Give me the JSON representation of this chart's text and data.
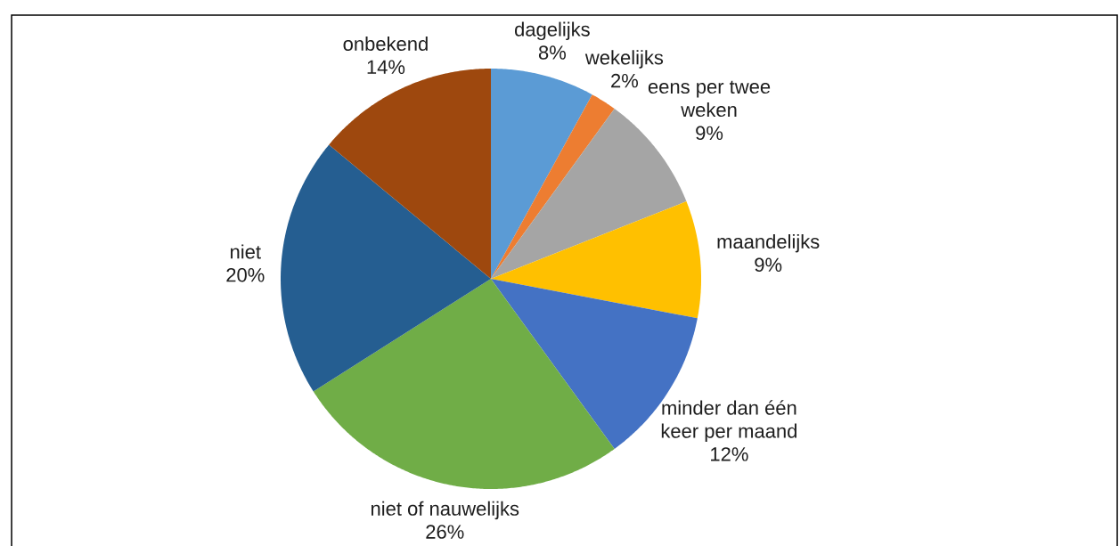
{
  "chart_data": {
    "type": "pie",
    "categories": [
      "dagelijks",
      "wekelijks",
      "eens per twee weken",
      "maandelijks",
      "minder dan één keer per maand",
      "niet of nauwelijks",
      "niet",
      "onbekend"
    ],
    "values": [
      8,
      2,
      9,
      9,
      12,
      26,
      20,
      14
    ],
    "value_labels": [
      "8%",
      "2%",
      "9%",
      "9%",
      "12%",
      "26%",
      "20%",
      "14%"
    ],
    "colors": [
      "#5b9bd5",
      "#ed7d31",
      "#a5a5a5",
      "#ffc000",
      "#4472c4",
      "#70ad47",
      "#255e91",
      "#9e480e"
    ]
  }
}
